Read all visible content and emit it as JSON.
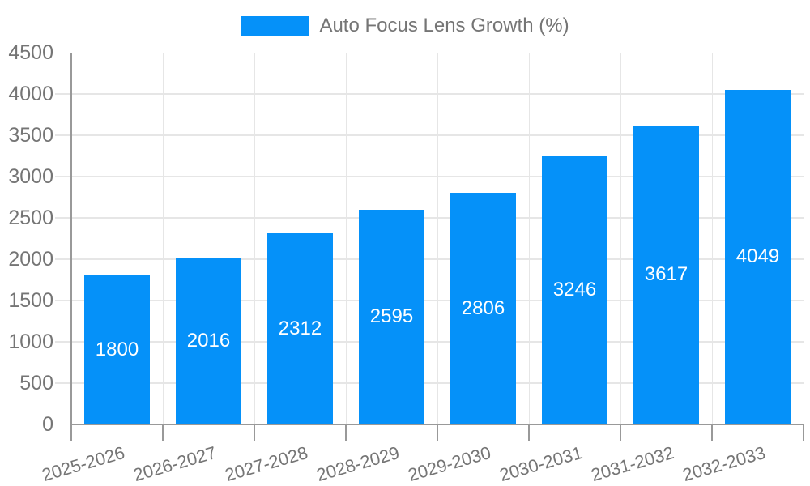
{
  "legend": {
    "label": "Auto Focus Lens Growth (%)"
  },
  "colors": {
    "bar": "#0591f9",
    "axis": "#999999",
    "grid": "#e6e6e6",
    "label_text": "#757575",
    "value_text": "#ffffff",
    "background": "#ffffff"
  },
  "chart_data": {
    "type": "bar",
    "title": "Auto Focus Lens Growth (%)",
    "categories": [
      "2025-2026",
      "2026-2027",
      "2027-2028",
      "2028-2029",
      "2029-2030",
      "2030-2031",
      "2031-2032",
      "2032-2033"
    ],
    "values": [
      1800,
      2016,
      2312,
      2595,
      2806,
      3246,
      3617,
      4049
    ],
    "xlabel": "",
    "ylabel": "",
    "ylim": [
      0,
      4500
    ],
    "yticks": [
      0,
      500,
      1000,
      1500,
      2000,
      2500,
      3000,
      3500,
      4000,
      4500
    ],
    "grid": true,
    "legend_position": "top",
    "value_label_position": "inside-center",
    "bar_color": "#0591f9",
    "value_label_color": "#ffffff"
  }
}
